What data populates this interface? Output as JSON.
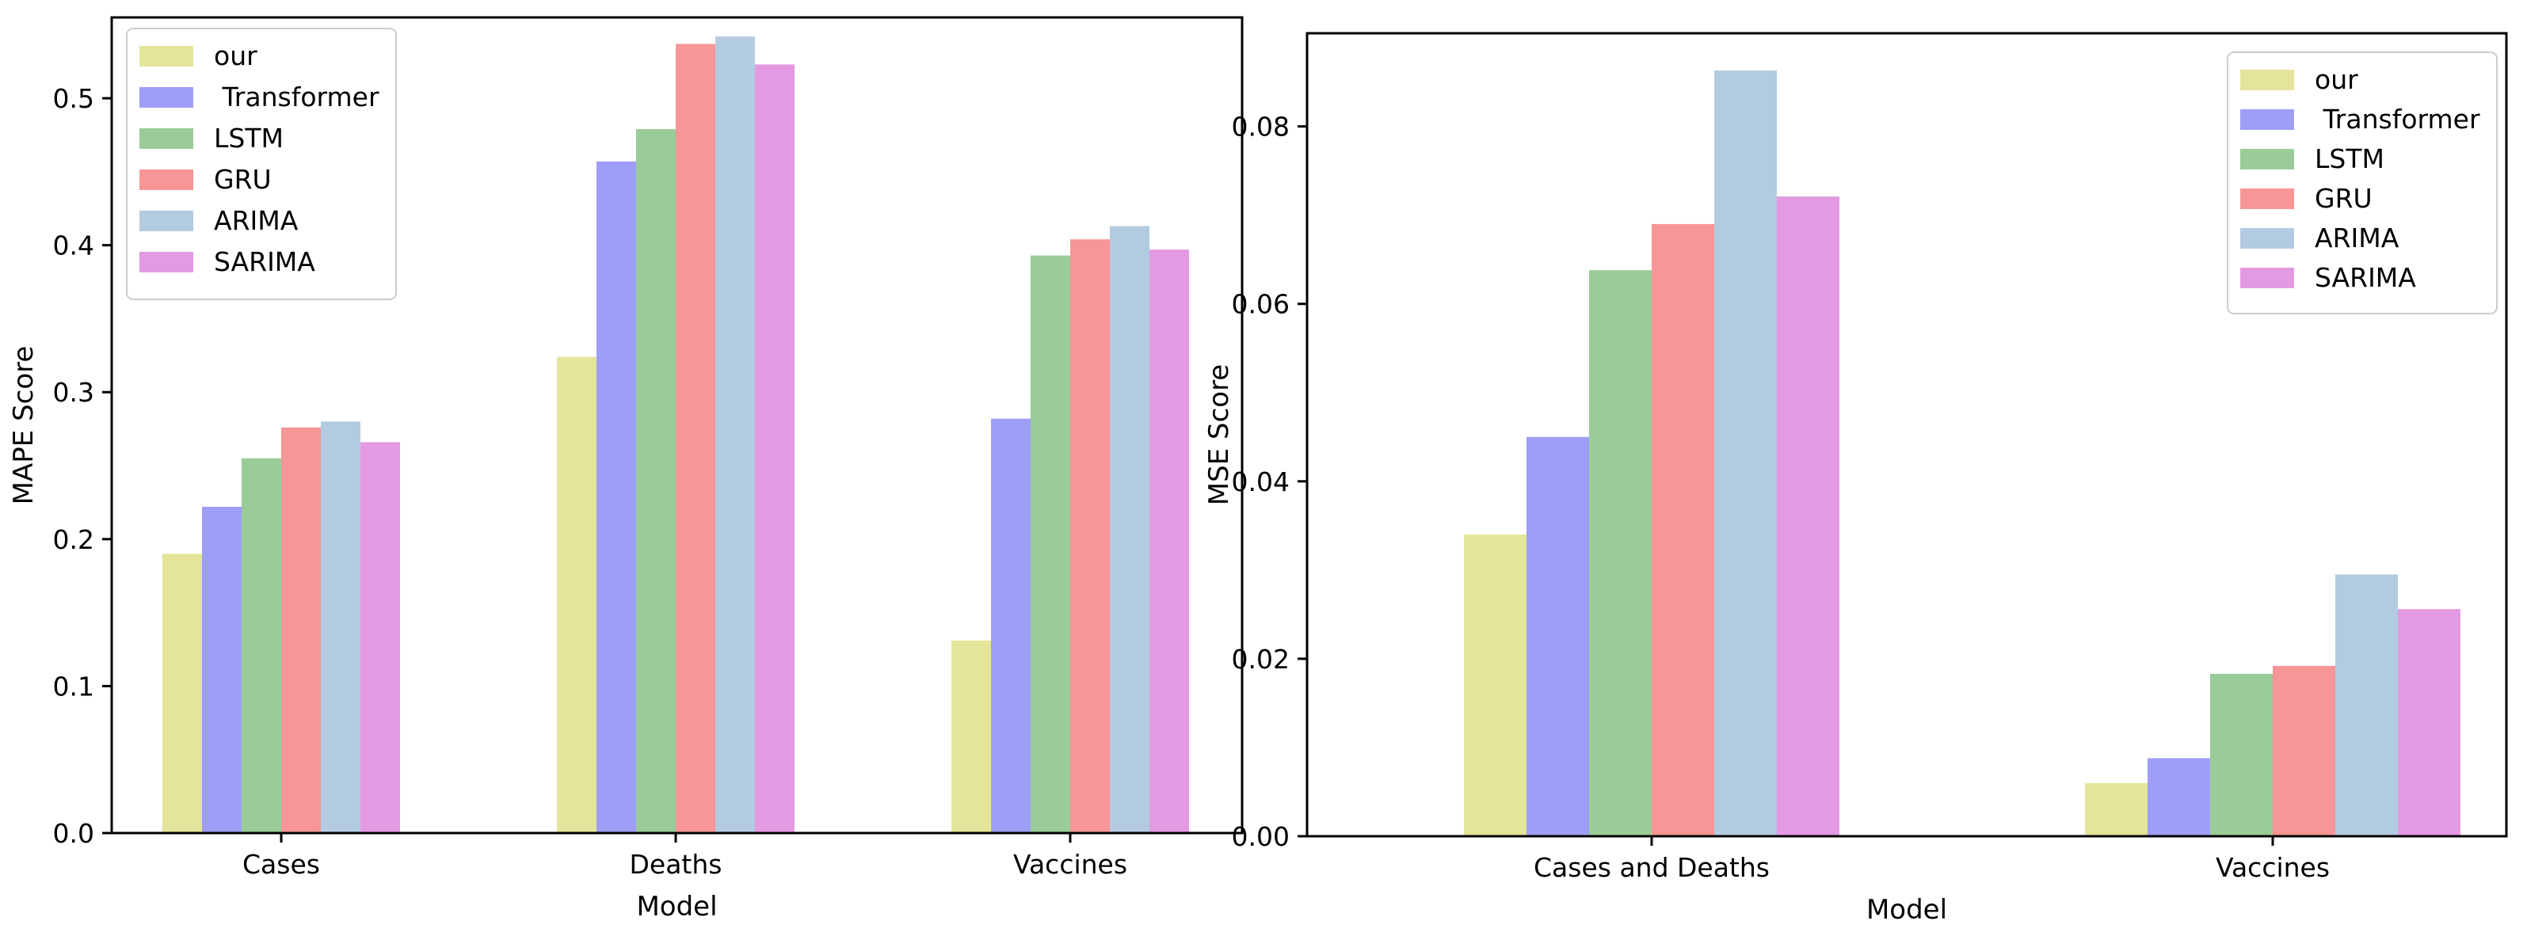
{
  "colors": {
    "our": "#e4e59a",
    "Transformer": "#9e9ef7",
    "LSTM": "#99cc99",
    "GRU": "#f79696",
    "ARIMA": "#b3cbe0",
    "SARIMA": "#e39ae3"
  },
  "chart_data": [
    {
      "type": "bar",
      "title": "",
      "xlabel": "Model",
      "ylabel": "MAPE Score",
      "categories": [
        "Cases",
        "Deaths",
        "Vaccines"
      ],
      "ylim": [
        0,
        0.555
      ],
      "yticks": [
        0.0,
        0.1,
        0.2,
        0.3,
        0.4,
        0.5
      ],
      "ytick_labels": [
        "0.0",
        "0.1",
        "0.2",
        "0.3",
        "0.4",
        "0.5"
      ],
      "legend_position": "top-left",
      "series": [
        {
          "name": "our",
          "label": "our",
          "values": [
            0.19,
            0.324,
            0.131
          ]
        },
        {
          "name": "Transformer",
          "label": " Transformer",
          "values": [
            0.222,
            0.457,
            0.282
          ]
        },
        {
          "name": "LSTM",
          "label": "LSTM",
          "values": [
            0.255,
            0.479,
            0.393
          ]
        },
        {
          "name": "GRU",
          "label": "GRU",
          "values": [
            0.276,
            0.537,
            0.404
          ]
        },
        {
          "name": "ARIMA",
          "label": "ARIMA",
          "values": [
            0.28,
            0.542,
            0.413
          ]
        },
        {
          "name": "SARIMA",
          "label": "SARIMA",
          "values": [
            0.266,
            0.523,
            0.397
          ]
        }
      ]
    },
    {
      "type": "bar",
      "title": "",
      "xlabel": "Model",
      "ylabel": "MSE Score",
      "categories": [
        "Cases and Deaths",
        "Vaccines"
      ],
      "ylim": [
        0,
        0.0905
      ],
      "yticks": [
        0.0,
        0.02,
        0.04,
        0.06,
        0.08
      ],
      "ytick_labels": [
        "0.00",
        "0.02",
        "0.04",
        "0.06",
        "0.08"
      ],
      "legend_position": "top-right",
      "series": [
        {
          "name": "our",
          "label": "our",
          "values": [
            0.034,
            0.006
          ]
        },
        {
          "name": "Transformer",
          "label": " Transformer",
          "values": [
            0.045,
            0.0088
          ]
        },
        {
          "name": "LSTM",
          "label": "LSTM",
          "values": [
            0.0638,
            0.0183
          ]
        },
        {
          "name": "GRU",
          "label": "GRU",
          "values": [
            0.069,
            0.0192
          ]
        },
        {
          "name": "ARIMA",
          "label": "ARIMA",
          "values": [
            0.0863,
            0.0295
          ]
        },
        {
          "name": "SARIMA",
          "label": "SARIMA",
          "values": [
            0.0721,
            0.0256
          ]
        }
      ]
    }
  ]
}
